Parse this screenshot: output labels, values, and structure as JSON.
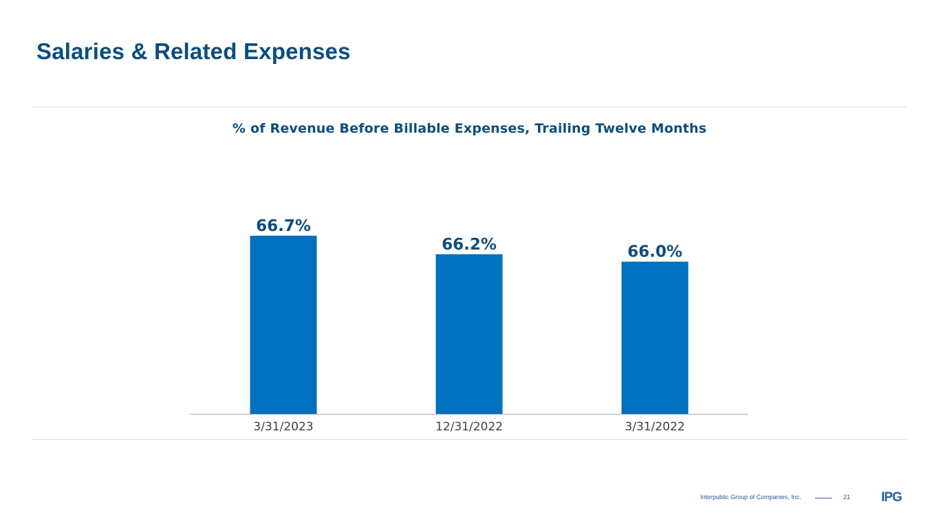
{
  "slide": {
    "title": "Salaries & Related Expenses",
    "footer_company": "Interpublic Group of Companies, Inc.",
    "page_number": "21",
    "logo_text": "IPG"
  },
  "colors": {
    "title": "#0d4d7d",
    "bar": "#0070c0",
    "axis": "#a6a6a6",
    "logo_light": "#8ab4e0",
    "logo_dark": "#1f5fa8"
  },
  "chart_data": {
    "type": "bar",
    "title": "% of Revenue Before Billable Expenses, Trailing Twelve Months",
    "categories": [
      "3/31/2023",
      "12/31/2022",
      "3/31/2022"
    ],
    "values": [
      66.7,
      66.2,
      66.0
    ],
    "data_labels": [
      "66.7%",
      "66.2%",
      "66.0%"
    ],
    "xlabel": "",
    "ylabel": "",
    "ylim": [
      61.9,
      66.9
    ],
    "grid": false,
    "legend": "none"
  }
}
